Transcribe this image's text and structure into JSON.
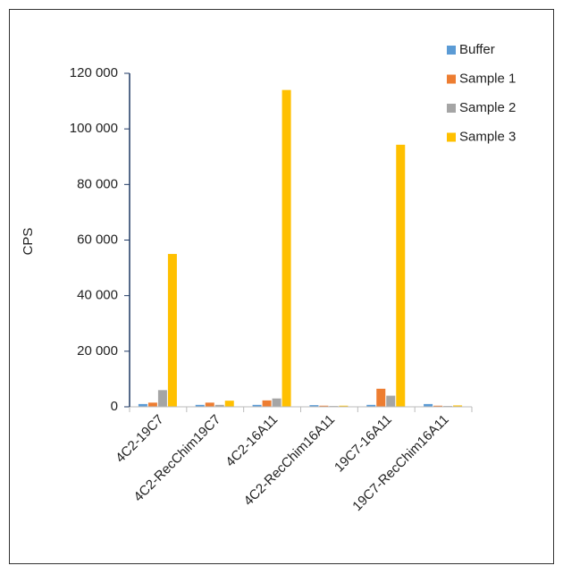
{
  "chart_data": {
    "type": "bar",
    "y_label": "CPS",
    "categories": [
      "4C2-19C7",
      "4C2-RecChim19C7",
      "4C2-16A11",
      "4C2-RecChim16A11",
      "19C7-16A11",
      "19C7-RecChim16A11"
    ],
    "series": [
      {
        "name": "Buffer",
        "color": "#5b9bd5",
        "values": [
          1000,
          700,
          700,
          600,
          700,
          1000
        ]
      },
      {
        "name": "Sample 1",
        "color": "#ed7d31",
        "values": [
          1500,
          1500,
          2300,
          400,
          6500,
          400
        ]
      },
      {
        "name": "Sample 2",
        "color": "#a5a5a5",
        "values": [
          6000,
          700,
          3000,
          300,
          4000,
          300
        ]
      },
      {
        "name": "Sample 3",
        "color": "#ffc000",
        "values": [
          55000,
          2200,
          114000,
          400,
          94300,
          500
        ]
      }
    ],
    "ylim": [
      0,
      120000
    ],
    "yticks": [
      0,
      {
        "value": 20000,
        "label": "20 000"
      },
      {
        "value": 40000,
        "label": "40 000"
      },
      {
        "value": 60000,
        "label": "60 000"
      },
      {
        "value": 80000,
        "label": "80 000"
      },
      {
        "value": 100000,
        "label": "100 000"
      },
      {
        "value": 120000,
        "label": "120 000"
      }
    ],
    "legend": "top-right"
  }
}
